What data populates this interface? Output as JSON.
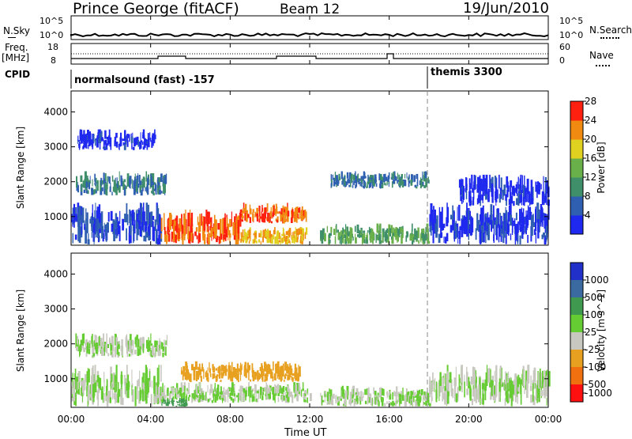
{
  "header": {
    "title": "Prince George (fitACF)",
    "beam": "Beam 12",
    "date": "19/Jun/2010"
  },
  "summary_panel": {
    "left_label": "N.Sky",
    "right_label": "N.Search",
    "left_ticks": [
      "10^5",
      "10^0"
    ],
    "right_ticks": [
      "10^5",
      "10^0"
    ]
  },
  "freq_panel": {
    "left_label_top": "Freq.",
    "left_label_bottom": "[MHz]",
    "right_label": "Nave",
    "left_ticks": [
      "18",
      "8"
    ],
    "right_ticks": [
      "60",
      "0"
    ]
  },
  "cpid_panel": {
    "label": "CPID",
    "mode1": "normalsound (fast) -157",
    "mode2": "themis 3300"
  },
  "time_axis": {
    "label": "Time UT",
    "ticks": [
      "00:00",
      "04:00",
      "08:00",
      "12:00",
      "16:00",
      "20:00",
      "00:00"
    ]
  },
  "chart_data": [
    {
      "type": "heatmap",
      "quantity": "Power",
      "xlabel": "Time UT",
      "ylabel": "Slant Range [km]",
      "colorbar_label": "Power [dB]",
      "x_ticks": [
        "00:00",
        "04:00",
        "08:00",
        "12:00",
        "16:00",
        "20:00",
        "00:00"
      ],
      "y_ticks": [
        1000,
        2000,
        3000,
        4000
      ],
      "ylim": [
        180,
        4600
      ],
      "xlim_hours": [
        0,
        24
      ],
      "colorbar_ticks": [
        "4",
        "8",
        "12",
        "16",
        "20",
        "24",
        "28"
      ],
      "colorbar_colors": [
        "#1e28ee",
        "#2f5fb0",
        "#3f8f6a",
        "#6ab04a",
        "#e0d020",
        "#f08a10",
        "#ff2010"
      ],
      "regions": [
        {
          "t0": 0.2,
          "t1": 4.8,
          "r0": 1600,
          "r1": 2300,
          "value": 10
        },
        {
          "t0": 0.3,
          "t1": 4.3,
          "r0": 2900,
          "r1": 3500,
          "value": 4
        },
        {
          "t0": 0,
          "t1": 4.5,
          "r0": 200,
          "r1": 1400,
          "value": 6
        },
        {
          "t0": 4.5,
          "t1": 8.5,
          "r0": 200,
          "r1": 1200,
          "value": 26
        },
        {
          "t0": 8.5,
          "t1": 11.8,
          "r0": 200,
          "r1": 700,
          "value": 22
        },
        {
          "t0": 8.5,
          "t1": 11.8,
          "r0": 800,
          "r1": 1400,
          "value": 26
        },
        {
          "t0": 12.5,
          "t1": 18,
          "r0": 200,
          "r1": 800,
          "value": 14
        },
        {
          "t0": 13,
          "t1": 18,
          "r0": 1800,
          "r1": 2300,
          "value": 10
        },
        {
          "t0": 18,
          "t1": 24,
          "r0": 200,
          "r1": 1400,
          "value": 5
        },
        {
          "t0": 19.5,
          "t1": 24,
          "r0": 1300,
          "r1": 2200,
          "value": 4
        }
      ]
    },
    {
      "type": "heatmap",
      "quantity": "Velocity",
      "xlabel": "Time UT",
      "ylabel": "Slant Range [km]",
      "colorbar_label": "Velocity [m s^-1]",
      "x_ticks": [
        "00:00",
        "04:00",
        "08:00",
        "12:00",
        "16:00",
        "20:00",
        "00:00"
      ],
      "y_ticks": [
        1000,
        2000,
        3000,
        4000
      ],
      "ylim": [
        180,
        4600
      ],
      "xlim_hours": [
        0,
        24
      ],
      "colorbar_ticks": [
        "1000",
        "500",
        "100",
        "25",
        "-25",
        "-100",
        "-500",
        "-1000"
      ],
      "colorbar_colors": [
        "#2030c8",
        "#3a6aa0",
        "#3f9a50",
        "#66cc33",
        "#c8c8c0",
        "#e8a020",
        "#f07010",
        "#ff1010"
      ],
      "regions": [
        {
          "t0": 0.2,
          "t1": 4.8,
          "r0": 1600,
          "r1": 2300,
          "value": 0
        },
        {
          "t0": 0,
          "t1": 4.5,
          "r0": 200,
          "r1": 1400,
          "value": 0
        },
        {
          "t0": 4.5,
          "t1": 8,
          "r0": 300,
          "r1": 900,
          "value": 0
        },
        {
          "t0": 5.5,
          "t1": 11.5,
          "r0": 900,
          "r1": 1500,
          "value": -100
        },
        {
          "t0": 8,
          "t1": 12,
          "r0": 300,
          "r1": 900,
          "value": 0
        },
        {
          "t0": 12.5,
          "t1": 18,
          "r0": 200,
          "r1": 800,
          "value": 0
        },
        {
          "t0": 18,
          "t1": 24,
          "r0": 200,
          "r1": 1400,
          "value": 0
        },
        {
          "t0": 4.5,
          "t1": 5.8,
          "r0": 200,
          "r1": 450,
          "value": 100
        }
      ]
    }
  ]
}
